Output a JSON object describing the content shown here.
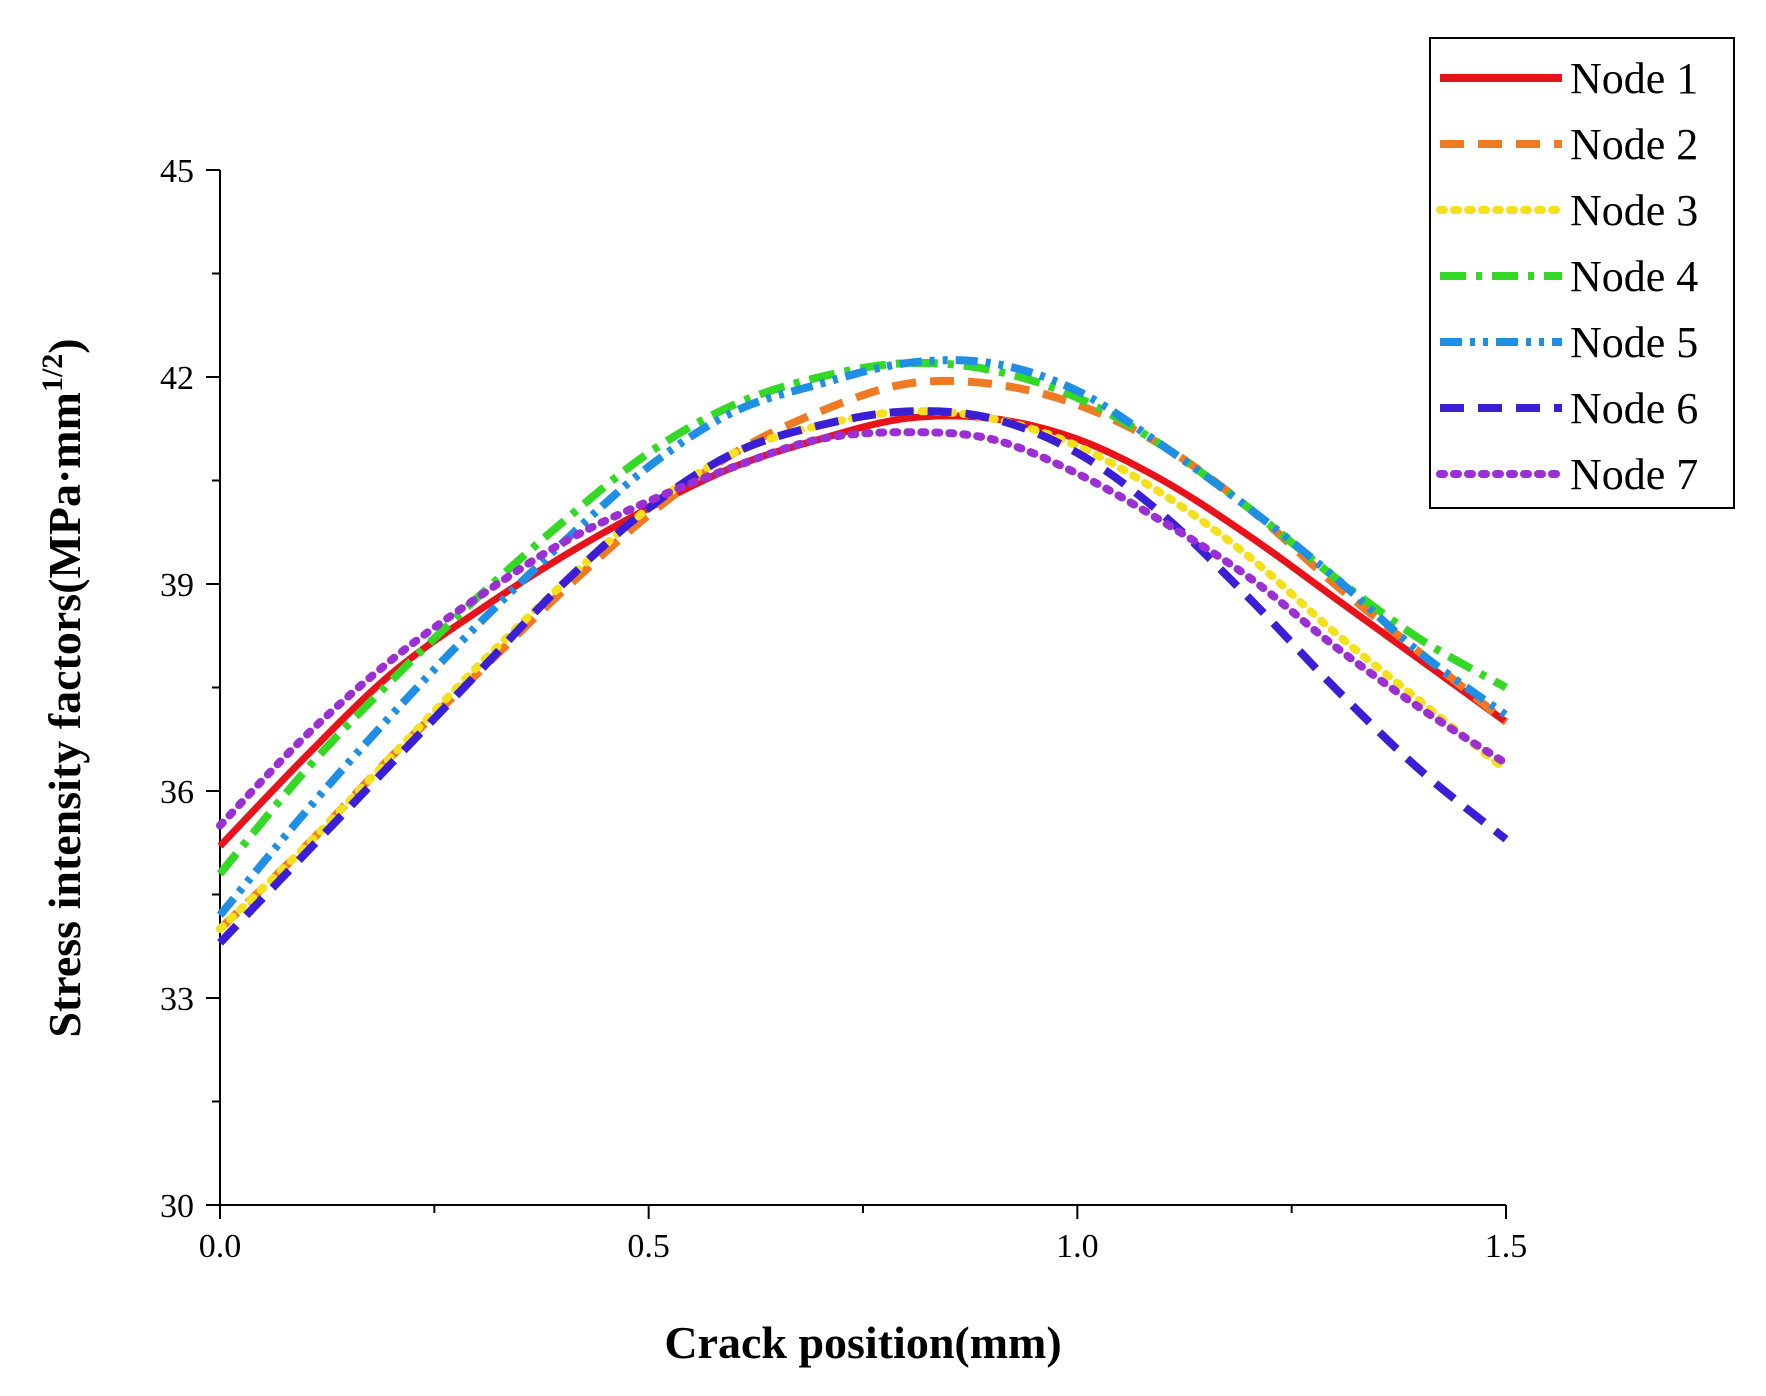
{
  "chart_data": {
    "type": "line",
    "title": "",
    "xlabel": "Crack position(mm)",
    "ylabel": {
      "main": "Stress intensity factors(MPa·mm",
      "superscript": "1/2",
      "suffix": ")"
    },
    "xlim": [
      0,
      1.5
    ],
    "ylim": [
      30,
      45
    ],
    "xticks": [
      0.0,
      0.5,
      1.0,
      1.5
    ],
    "xtick_labels": [
      "0.0",
      "0.5",
      "1.0",
      "1.5"
    ],
    "yticks": [
      30,
      33,
      36,
      39,
      42,
      45
    ],
    "ytick_labels": [
      "30",
      "33",
      "36",
      "39",
      "42",
      "45"
    ],
    "grid": false,
    "legend_position": "top-right",
    "x": [
      0.0,
      0.1,
      0.2,
      0.3,
      0.4,
      0.5,
      0.6,
      0.7,
      0.8,
      0.9,
      1.0,
      1.1,
      1.2,
      1.3,
      1.4,
      1.5
    ],
    "series": [
      {
        "name": "Node 1",
        "color": "#e8121b",
        "dash": "solid",
        "values": [
          35.2,
          36.5,
          37.7,
          38.6,
          39.4,
          40.1,
          40.7,
          41.1,
          41.4,
          41.4,
          41.1,
          40.5,
          39.7,
          38.8,
          37.9,
          37.0
        ]
      },
      {
        "name": "Node 2",
        "color": "#f07a22",
        "dash": "dash",
        "values": [
          34.0,
          35.2,
          36.5,
          37.7,
          38.9,
          40.0,
          40.9,
          41.5,
          41.9,
          41.9,
          41.6,
          41.0,
          40.1,
          39.0,
          38.0,
          37.0
        ]
      },
      {
        "name": "Node 3",
        "color": "#f5e11b",
        "dash": "dot",
        "values": [
          34.0,
          35.2,
          36.5,
          37.8,
          39.0,
          40.1,
          40.9,
          41.3,
          41.5,
          41.4,
          41.0,
          40.3,
          39.4,
          38.3,
          37.3,
          36.3
        ]
      },
      {
        "name": "Node 4",
        "color": "#34d926",
        "dash": "dashdot",
        "values": [
          34.8,
          36.3,
          37.6,
          38.8,
          39.9,
          40.9,
          41.6,
          42.0,
          42.2,
          42.1,
          41.7,
          41.0,
          40.1,
          39.1,
          38.2,
          37.5
        ]
      },
      {
        "name": "Node 5",
        "color": "#1f8fe6",
        "dash": "dashdotdot",
        "values": [
          34.2,
          35.7,
          37.1,
          38.4,
          39.6,
          40.7,
          41.5,
          41.9,
          42.2,
          42.2,
          41.8,
          41.0,
          40.1,
          39.1,
          38.0,
          37.1
        ]
      },
      {
        "name": "Node 6",
        "color": "#3a1fd6",
        "dash": "dash",
        "values": [
          33.8,
          35.1,
          36.4,
          37.7,
          39.0,
          40.1,
          40.9,
          41.3,
          41.5,
          41.4,
          40.9,
          40.0,
          38.8,
          37.5,
          36.3,
          35.3
        ]
      },
      {
        "name": "Node 7",
        "color": "#9b2fd4",
        "dash": "dot",
        "values": [
          35.5,
          36.8,
          37.9,
          38.8,
          39.6,
          40.2,
          40.7,
          41.1,
          41.2,
          41.1,
          40.6,
          39.9,
          39.1,
          38.1,
          37.2,
          36.4
        ]
      }
    ]
  }
}
